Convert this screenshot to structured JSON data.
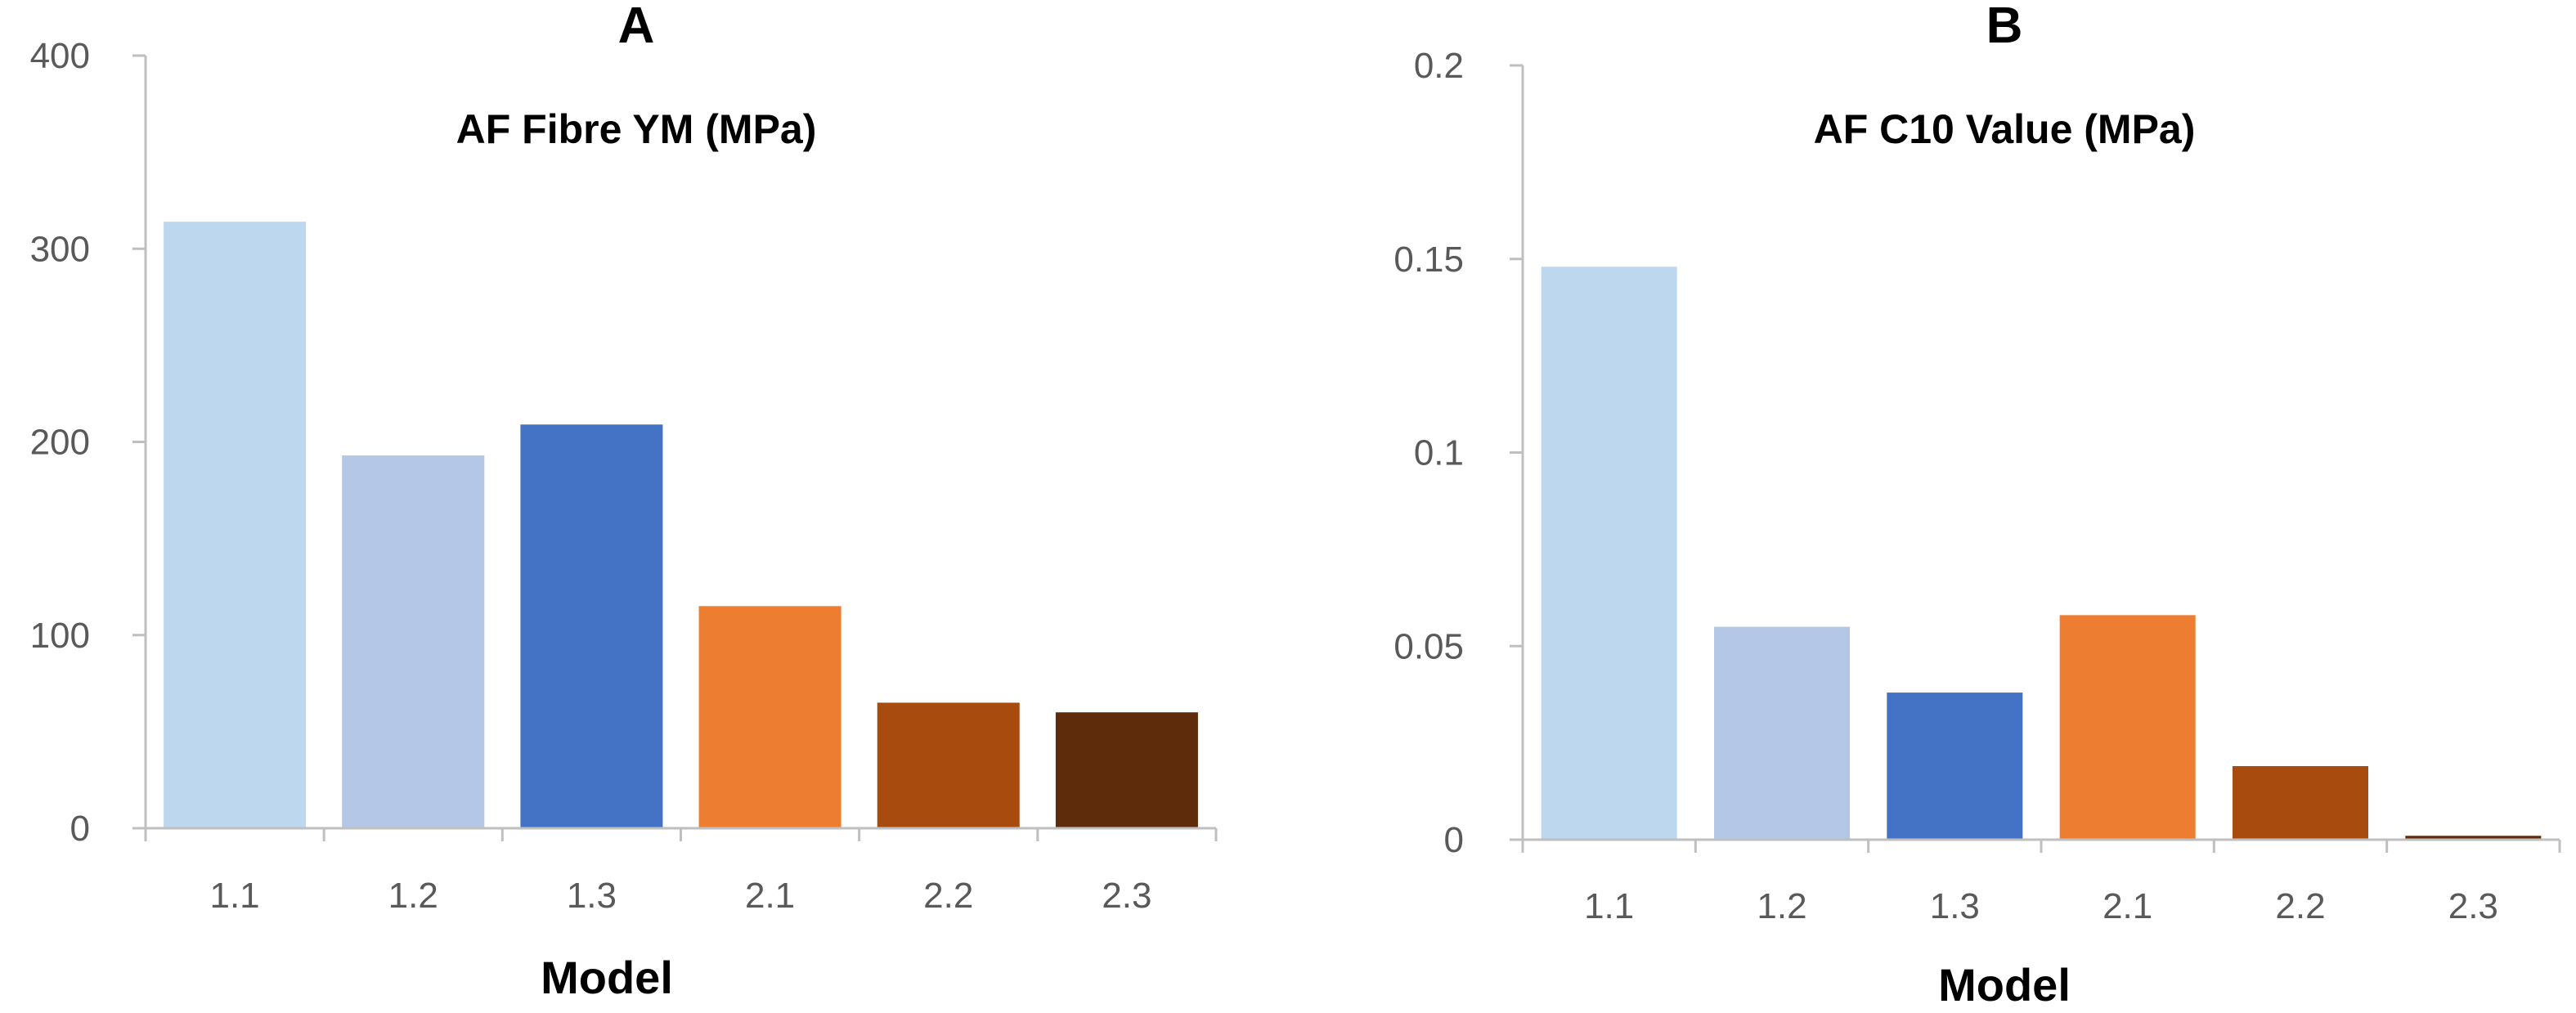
{
  "chart_data": [
    {
      "type": "bar",
      "panel_label": "A",
      "title": "AF Fibre YM (MPa)",
      "xlabel": "Model",
      "ylabel": "",
      "categories": [
        "1.1",
        "1.2",
        "1.3",
        "2.1",
        "2.2",
        "2.3"
      ],
      "values": [
        314,
        193,
        209,
        115,
        65,
        60
      ],
      "colors": [
        "#bdd7ee",
        "#b4c7e7",
        "#4472c4",
        "#ed7d31",
        "#a84b0f",
        "#5e2c0a"
      ],
      "ylim": [
        0,
        400
      ],
      "yticks": [
        0,
        100,
        200,
        300,
        400
      ],
      "ytick_labels": [
        "0",
        "100",
        "200",
        "300",
        "400"
      ],
      "grid": false,
      "legend": "none"
    },
    {
      "type": "bar",
      "panel_label": "B",
      "title": "AF C10 Value (MPa)",
      "xlabel": "Model",
      "ylabel": "",
      "categories": [
        "1.1",
        "1.2",
        "1.3",
        "2.1",
        "2.2",
        "2.3"
      ],
      "values": [
        0.148,
        0.055,
        0.038,
        0.058,
        0.019,
        0.001
      ],
      "colors": [
        "#bdd7ee",
        "#b4c7e7",
        "#4472c4",
        "#ed7d31",
        "#a84b0f",
        "#5e2c0a"
      ],
      "ylim": [
        0,
        0.2
      ],
      "yticks": [
        0,
        0.05,
        0.1,
        0.15,
        0.2
      ],
      "ytick_labels": [
        "0",
        "0.05",
        "0.1",
        "0.15",
        "0.2"
      ],
      "grid": false,
      "legend": "none"
    }
  ]
}
